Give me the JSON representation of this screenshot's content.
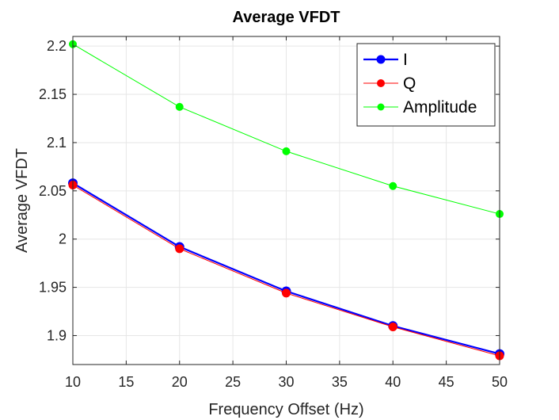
{
  "chart_data": {
    "type": "line",
    "title": "Average VFDT",
    "xlabel": "Frequency Offset (Hz)",
    "ylabel": "Average VFDT",
    "x": [
      10,
      20,
      30,
      40,
      50
    ],
    "xlim": [
      10,
      50
    ],
    "ylim": [
      1.87,
      2.21
    ],
    "xticks": [
      10,
      15,
      20,
      25,
      30,
      35,
      40,
      45,
      50
    ],
    "xtick_labels": [
      "10",
      "15",
      "20",
      "25",
      "30",
      "35",
      "40",
      "45",
      "50"
    ],
    "yticks": [
      1.9,
      1.95,
      2.0,
      2.05,
      2.1,
      2.15,
      2.2
    ],
    "ytick_labels": [
      "1.9",
      "1.95",
      "2",
      "2.05",
      "2.1",
      "2.15",
      "2.2"
    ],
    "grid": true,
    "legend_position": "top-right",
    "series": [
      {
        "name": "I",
        "color": "#0000ff",
        "values": [
          2.058,
          1.992,
          1.946,
          1.91,
          1.881
        ]
      },
      {
        "name": "Q",
        "color": "#ff0000",
        "values": [
          2.056,
          1.99,
          1.944,
          1.909,
          1.879
        ]
      },
      {
        "name": "Amplitude",
        "color": "#00ff00",
        "values": [
          2.202,
          2.137,
          2.091,
          2.055,
          2.026
        ]
      }
    ]
  }
}
